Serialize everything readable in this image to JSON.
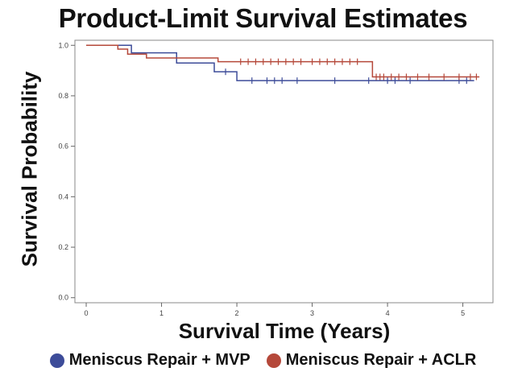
{
  "chart_data": {
    "type": "line",
    "title": "Product-Limit Survival Estimates",
    "xlabel": "Survival Time (Years)",
    "ylabel": "Survival Probability",
    "xlim": [
      -0.15,
      5.4
    ],
    "ylim": [
      -0.02,
      1.02
    ],
    "xticks": [
      "0",
      "1",
      "2",
      "3",
      "4",
      "5"
    ],
    "yticks": [
      "0.0",
      "0.2",
      "0.4",
      "0.6",
      "0.8",
      "1.0"
    ],
    "legend_position": "bottom",
    "grid": false,
    "series": [
      {
        "name": "Meniscus Repair + MVP",
        "color": "#3d4c99",
        "steps": [
          [
            0,
            1.0
          ],
          [
            0.6,
            0.97
          ],
          [
            1.2,
            0.93
          ],
          [
            1.7,
            0.895
          ],
          [
            2.0,
            0.86
          ],
          [
            5.15,
            0.86
          ]
        ],
        "censored": [
          1.85,
          2.2,
          2.4,
          2.5,
          2.6,
          2.8,
          3.3,
          3.75,
          4.0,
          4.1,
          4.3,
          4.95,
          5.05
        ]
      },
      {
        "name": "Meniscus Repair + ACLR",
        "color": "#b5483a",
        "steps": [
          [
            0,
            1.0
          ],
          [
            0.42,
            0.985
          ],
          [
            0.55,
            0.965
          ],
          [
            0.8,
            0.95
          ],
          [
            1.75,
            0.935
          ],
          [
            3.8,
            0.875
          ],
          [
            5.22,
            0.875
          ]
        ],
        "censored": [
          2.05,
          2.15,
          2.25,
          2.35,
          2.45,
          2.55,
          2.65,
          2.75,
          2.85,
          3.0,
          3.1,
          3.2,
          3.3,
          3.4,
          3.5,
          3.6,
          3.85,
          3.9,
          3.95,
          4.05,
          4.15,
          4.25,
          4.4,
          4.55,
          4.75,
          4.95,
          5.1,
          5.18
        ]
      }
    ]
  }
}
